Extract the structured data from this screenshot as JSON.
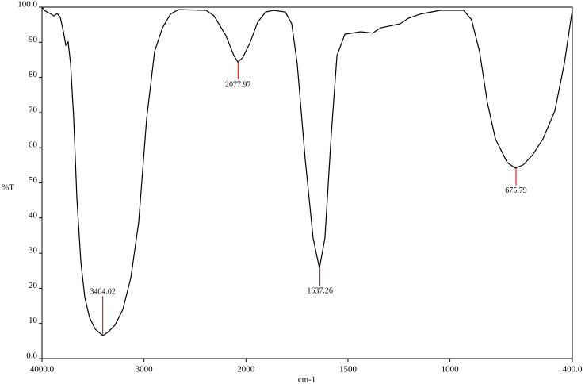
{
  "chart_data": {
    "type": "line",
    "xlabel": "cm-1",
    "ylabel": "%T",
    "xlim": [
      4000,
      400
    ],
    "ylim": [
      0,
      100
    ],
    "xscale_break": 2000,
    "xticks": [
      {
        "value": 4000,
        "label": "4000.0"
      },
      3000,
      2000,
      1500,
      1000,
      {
        "value": 400,
        "label": "400.0"
      }
    ],
    "yticks": [
      {
        "value": 0,
        "label": "0.0"
      },
      10,
      20,
      30,
      40,
      50,
      60,
      70,
      80,
      90,
      {
        "value": 100,
        "label": "100.0"
      }
    ],
    "color": "#000000",
    "peak_color": "#cc0000",
    "x": [
      4000,
      3969,
      3922,
      3884,
      3852,
      3821,
      3790,
      3767,
      3744,
      3720,
      3689,
      3658,
      3619,
      3580,
      3534,
      3479,
      3402,
      3347,
      3285,
      3207,
      3129,
      3052,
      2974,
      2896,
      2819,
      2741,
      2663,
      2391,
      2313,
      2197,
      2119,
      2080,
      2033,
      1982,
      1943,
      1904,
      1865,
      1807,
      1776,
      1749,
      1710,
      1671,
      1640,
      1613,
      1582,
      1554,
      1515,
      1438,
      1379,
      1341,
      1282,
      1243,
      1205,
      1146,
      1049,
      933,
      894,
      855,
      816,
      777,
      719,
      680,
      641,
      594,
      544,
      486,
      439,
      400
    ],
    "values": [
      100,
      98.9,
      98.2,
      97.5,
      98.2,
      97.1,
      93,
      89.2,
      90.1,
      84,
      68.2,
      45.6,
      27.5,
      17.4,
      11.7,
      8.4,
      6.5,
      7.7,
      9.5,
      14,
      23,
      38.8,
      68.2,
      87.4,
      94.1,
      98,
      99.3,
      99.1,
      97.5,
      91.9,
      86.2,
      84.4,
      85.6,
      89.6,
      95.7,
      98.6,
      99.1,
      98.6,
      95.3,
      84,
      56.9,
      34.3,
      25.7,
      34.3,
      63.7,
      86.2,
      92.3,
      93,
      92.6,
      94.1,
      94.8,
      95.3,
      96.8,
      98,
      99.1,
      99.1,
      96.4,
      87.4,
      72.7,
      62.5,
      55.8,
      54.2,
      55.1,
      58,
      62.5,
      70.4,
      84,
      99.3
    ],
    "peaks": [
      {
        "x": 3404.02,
        "y": 6.5
      },
      {
        "x": 2077.97,
        "y": 84.4
      },
      {
        "x": 1637.26,
        "y": 25.7
      },
      {
        "x": 675.79,
        "y": 54.2
      }
    ]
  }
}
